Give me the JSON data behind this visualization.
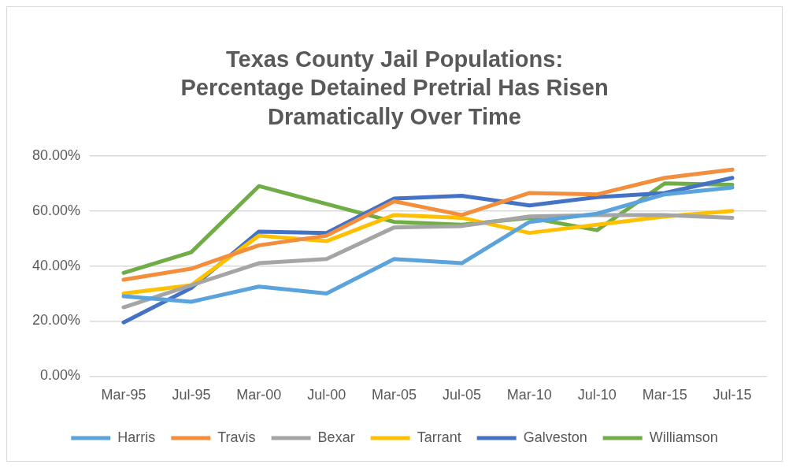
{
  "chart_data": {
    "type": "line",
    "title": "Texas County Jail Populations:\nPercentage Detained Pretrial Has Risen\nDramatically Over Time",
    "categories": [
      "Mar-95",
      "Jul-95",
      "Mar-00",
      "Jul-00",
      "Mar-05",
      "Jul-05",
      "Mar-10",
      "Jul-10",
      "Mar-15",
      "Jul-15"
    ],
    "series": [
      {
        "name": "Harris",
        "color": "#5ba3dc",
        "values": [
          29,
          27,
          32.5,
          30,
          42.5,
          41,
          56,
          59,
          66,
          68.5
        ]
      },
      {
        "name": "Travis",
        "color": "#f28e3c",
        "values": [
          35,
          39,
          47.5,
          51,
          63.5,
          58.5,
          66.5,
          66,
          72,
          75
        ]
      },
      {
        "name": "Bexar",
        "color": "#a5a5a5",
        "values": [
          25,
          33,
          41,
          42.5,
          54,
          54.5,
          58,
          58.5,
          58.5,
          57.5
        ]
      },
      {
        "name": "Tarrant",
        "color": "#ffc000",
        "values": [
          30,
          33,
          51,
          49,
          58.5,
          57.5,
          52,
          55,
          58,
          60
        ]
      },
      {
        "name": "Galveston",
        "color": "#4472c4",
        "values": [
          19.5,
          32,
          52.5,
          52,
          64.5,
          65.5,
          62,
          65,
          66.5,
          72
        ]
      },
      {
        "name": "Williamson",
        "color": "#70ad47",
        "values": [
          37.5,
          45,
          69,
          62.5,
          56,
          55,
          57.5,
          53,
          70,
          69.5
        ]
      }
    ],
    "ylim": [
      0,
      80
    ],
    "yticks": [
      {
        "value": 0,
        "label": "0.00%"
      },
      {
        "value": 20,
        "label": "20.00%"
      },
      {
        "value": 40,
        "label": "40.00%"
      },
      {
        "value": 60,
        "label": "60.00%"
      },
      {
        "value": 80,
        "label": "80.00%"
      }
    ],
    "grid": "y",
    "legend": "bottom",
    "marker": "none",
    "line_style": "solid"
  }
}
